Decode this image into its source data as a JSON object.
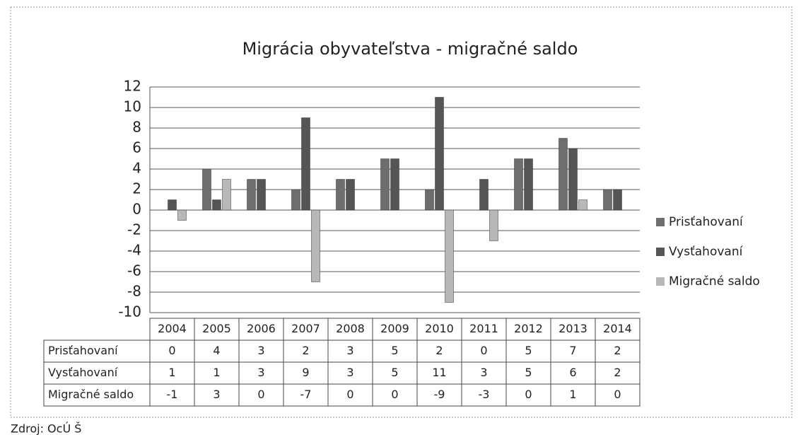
{
  "chart_data": {
    "type": "bar",
    "title": "Migrácia obyvateľstva - migračné saldo",
    "categories": [
      "2004",
      "2005",
      "2006",
      "2007",
      "2008",
      "2009",
      "2010",
      "2011",
      "2012",
      "2013",
      "2014"
    ],
    "series": [
      {
        "name": "Prisťahovaní",
        "color": "#6e6e6e",
        "values": [
          0,
          4,
          3,
          2,
          3,
          5,
          2,
          0,
          5,
          7,
          2
        ]
      },
      {
        "name": "Vysťahovaní",
        "color": "#555555",
        "values": [
          1,
          1,
          3,
          9,
          3,
          5,
          11,
          3,
          5,
          6,
          2
        ]
      },
      {
        "name": "Migračné saldo",
        "color": "#b8b8b8",
        "values": [
          -1,
          3,
          0,
          -7,
          0,
          0,
          -9,
          -3,
          0,
          1,
          0
        ]
      }
    ],
    "ylim": [
      -10,
      12
    ],
    "yticks": [
      -10,
      -8,
      -6,
      -4,
      -2,
      0,
      2,
      4,
      6,
      8,
      10,
      12
    ],
    "grid": true,
    "legend": "right",
    "data_table": true,
    "source": "Zdroj: OcÚ Š"
  }
}
